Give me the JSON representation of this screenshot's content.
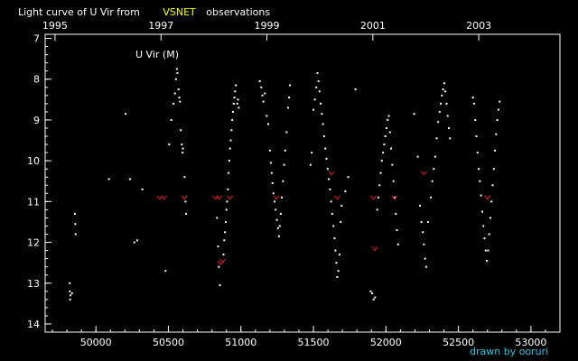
{
  "chart_data": {
    "type": "scatter",
    "title_prefix": "Light curve of U Vir from",
    "title_source": "VSNET",
    "title_suffix": "observations",
    "star_label": "U Vir (M)",
    "credit": "drawn by ooruri",
    "colors": {
      "background": "#000000",
      "axes": "#ffffff",
      "source_highlight": "#ffff00",
      "visual_points": "#ffffff",
      "fainter_than_marks": "#e02020",
      "credit": "#26c6e6"
    },
    "x_axis": {
      "quantity": "JD-2400000",
      "range": [
        49650,
        53200
      ],
      "ticks": [
        50000,
        50500,
        51000,
        51500,
        52000,
        52500,
        53000
      ],
      "tick_labels": [
        "50000",
        "50500",
        "51000",
        "51500",
        "52000",
        "52500",
        "53000"
      ],
      "minor_step": 100
    },
    "top_axis": {
      "quantity": "year",
      "tick_labels": [
        {
          "jd": 49718,
          "label": "1995"
        },
        {
          "jd": 50449,
          "label": "1997"
        },
        {
          "jd": 51179,
          "label": "1999"
        },
        {
          "jd": 51910,
          "label": "2001"
        },
        {
          "jd": 52640,
          "label": "2003"
        }
      ]
    },
    "y_axis": {
      "quantity": "magnitude",
      "inverted": true,
      "range": [
        6.9,
        14.2
      ],
      "ticks": [
        7,
        8,
        9,
        10,
        11,
        12,
        13,
        14
      ],
      "tick_labels": [
        "7",
        "8",
        "9",
        "10",
        "11",
        "12",
        "13",
        "14"
      ],
      "minor_step": 0.2
    },
    "series": [
      {
        "marker": "dot",
        "points": [
          [
            49820,
            13.0
          ],
          [
            49820,
            13.2
          ],
          [
            49825,
            13.3
          ],
          [
            49822,
            13.4
          ],
          [
            49835,
            13.25
          ],
          [
            49855,
            11.3
          ],
          [
            49858,
            11.55
          ],
          [
            49860,
            11.8
          ],
          [
            50090,
            10.45
          ],
          [
            50205,
            8.85
          ],
          [
            50235,
            10.45
          ],
          [
            50265,
            12.0
          ],
          [
            50285,
            11.95
          ],
          [
            50320,
            10.7
          ],
          [
            50480,
            12.7
          ],
          [
            50505,
            9.6
          ],
          [
            50520,
            9.0
          ],
          [
            50535,
            8.6
          ],
          [
            50545,
            8.35
          ],
          [
            50552,
            8.0
          ],
          [
            50558,
            7.75
          ],
          [
            50562,
            7.85
          ],
          [
            50570,
            8.25
          ],
          [
            50575,
            8.45
          ],
          [
            50580,
            8.55
          ],
          [
            50585,
            9.25
          ],
          [
            50592,
            9.6
          ],
          [
            50598,
            9.8
          ],
          [
            50600,
            9.7
          ],
          [
            50612,
            10.4
          ],
          [
            50618,
            11.0
          ],
          [
            50622,
            11.3
          ],
          [
            50835,
            11.4
          ],
          [
            50842,
            12.1
          ],
          [
            50848,
            12.6
          ],
          [
            50855,
            13.05
          ],
          [
            50880,
            12.3
          ],
          [
            50885,
            11.95
          ],
          [
            50890,
            11.75
          ],
          [
            50895,
            11.5
          ],
          [
            50900,
            11.2
          ],
          [
            50905,
            11.0
          ],
          [
            50910,
            10.7
          ],
          [
            50915,
            10.3
          ],
          [
            50920,
            10.0
          ],
          [
            50925,
            9.7
          ],
          [
            50930,
            9.5
          ],
          [
            50935,
            9.25
          ],
          [
            50940,
            9.0
          ],
          [
            50945,
            8.8
          ],
          [
            50950,
            8.6
          ],
          [
            50955,
            8.45
          ],
          [
            50960,
            8.3
          ],
          [
            50965,
            8.15
          ],
          [
            50975,
            8.6
          ],
          [
            50980,
            8.5
          ],
          [
            50985,
            8.7
          ],
          [
            51130,
            8.05
          ],
          [
            51140,
            8.2
          ],
          [
            51148,
            8.4
          ],
          [
            51155,
            8.55
          ],
          [
            51165,
            8.35
          ],
          [
            51178,
            8.9
          ],
          [
            51188,
            9.1
          ],
          [
            51200,
            9.75
          ],
          [
            51206,
            10.05
          ],
          [
            51212,
            10.3
          ],
          [
            51218,
            10.55
          ],
          [
            51224,
            10.8
          ],
          [
            51232,
            11.0
          ],
          [
            51240,
            11.2
          ],
          [
            51248,
            11.45
          ],
          [
            51256,
            11.65
          ],
          [
            51262,
            11.85
          ],
          [
            51268,
            11.6
          ],
          [
            51275,
            11.3
          ],
          [
            51282,
            10.9
          ],
          [
            51290,
            10.5
          ],
          [
            51298,
            10.1
          ],
          [
            51305,
            9.75
          ],
          [
            51315,
            9.3
          ],
          [
            51325,
            8.7
          ],
          [
            51332,
            8.45
          ],
          [
            51338,
            8.15
          ],
          [
            51480,
            10.1
          ],
          [
            51488,
            9.8
          ],
          [
            51500,
            8.75
          ],
          [
            51510,
            8.5
          ],
          [
            51520,
            8.2
          ],
          [
            51528,
            7.85
          ],
          [
            51535,
            8.05
          ],
          [
            51542,
            8.3
          ],
          [
            51550,
            8.6
          ],
          [
            51558,
            8.85
          ],
          [
            51566,
            9.1
          ],
          [
            51574,
            9.4
          ],
          [
            51582,
            9.7
          ],
          [
            51590,
            9.95
          ],
          [
            51598,
            10.2
          ],
          [
            51606,
            10.45
          ],
          [
            51614,
            10.7
          ],
          [
            51622,
            11.0
          ],
          [
            51630,
            11.3
          ],
          [
            51638,
            11.6
          ],
          [
            51646,
            11.9
          ],
          [
            51652,
            12.2
          ],
          [
            51658,
            12.5
          ],
          [
            51664,
            12.85
          ],
          [
            51672,
            12.7
          ],
          [
            51680,
            12.3
          ],
          [
            51688,
            11.5
          ],
          [
            51694,
            11.1
          ],
          [
            51720,
            10.75
          ],
          [
            51740,
            10.4
          ],
          [
            51790,
            8.25
          ],
          [
            51895,
            13.2
          ],
          [
            51905,
            13.25
          ],
          [
            51915,
            13.4
          ],
          [
            51925,
            13.35
          ],
          [
            51940,
            11.2
          ],
          [
            51948,
            10.9
          ],
          [
            51956,
            10.6
          ],
          [
            51964,
            10.3
          ],
          [
            51972,
            10.0
          ],
          [
            51980,
            9.8
          ],
          [
            51988,
            9.6
          ],
          [
            51996,
            9.4
          ],
          [
            52004,
            9.2
          ],
          [
            52012,
            9.0
          ],
          [
            52020,
            8.9
          ],
          [
            52028,
            9.3
          ],
          [
            52036,
            9.7
          ],
          [
            52044,
            10.1
          ],
          [
            52052,
            10.5
          ],
          [
            52060,
            10.9
          ],
          [
            52068,
            11.3
          ],
          [
            52076,
            11.7
          ],
          [
            52084,
            12.05
          ],
          [
            52195,
            8.85
          ],
          [
            52220,
            9.9
          ],
          [
            52235,
            11.1
          ],
          [
            52245,
            11.5
          ],
          [
            52255,
            11.75
          ],
          [
            52262,
            12.05
          ],
          [
            52270,
            12.4
          ],
          [
            52278,
            12.6
          ],
          [
            52290,
            11.5
          ],
          [
            52310,
            10.9
          ],
          [
            52320,
            10.5
          ],
          [
            52330,
            10.2
          ],
          [
            52340,
            9.9
          ],
          [
            52350,
            9.45
          ],
          [
            52360,
            9.05
          ],
          [
            52370,
            8.8
          ],
          [
            52378,
            8.6
          ],
          [
            52386,
            8.4
          ],
          [
            52394,
            8.25
          ],
          [
            52402,
            8.1
          ],
          [
            52410,
            8.3
          ],
          [
            52418,
            8.6
          ],
          [
            52426,
            8.9
          ],
          [
            52434,
            9.2
          ],
          [
            52442,
            9.45
          ],
          [
            52600,
            8.45
          ],
          [
            52608,
            8.6
          ],
          [
            52616,
            9.0
          ],
          [
            52624,
            9.4
          ],
          [
            52632,
            9.8
          ],
          [
            52640,
            10.2
          ],
          [
            52648,
            10.5
          ],
          [
            52656,
            10.85
          ],
          [
            52664,
            11.25
          ],
          [
            52672,
            11.6
          ],
          [
            52680,
            11.9
          ],
          [
            52688,
            12.2
          ],
          [
            52696,
            12.45
          ],
          [
            52704,
            12.2
          ],
          [
            52712,
            11.8
          ],
          [
            52720,
            11.4
          ],
          [
            52728,
            11.0
          ],
          [
            52736,
            10.6
          ],
          [
            52744,
            10.2
          ],
          [
            52752,
            9.75
          ],
          [
            52760,
            9.35
          ],
          [
            52768,
            9.0
          ],
          [
            52776,
            8.75
          ],
          [
            52784,
            8.55
          ]
        ]
      },
      {
        "marker": "fainter-than",
        "points": [
          [
            50440,
            10.9
          ],
          [
            50470,
            10.9
          ],
          [
            50610,
            10.9
          ],
          [
            50825,
            10.9
          ],
          [
            50850,
            10.9
          ],
          [
            50925,
            10.9
          ],
          [
            50860,
            12.5
          ],
          [
            50875,
            12.45
          ],
          [
            51245,
            10.9
          ],
          [
            51625,
            10.3
          ],
          [
            51665,
            10.9
          ],
          [
            51915,
            10.9
          ],
          [
            51925,
            12.15
          ],
          [
            52060,
            10.9
          ],
          [
            52262,
            10.3
          ],
          [
            52700,
            10.9
          ]
        ]
      }
    ]
  }
}
